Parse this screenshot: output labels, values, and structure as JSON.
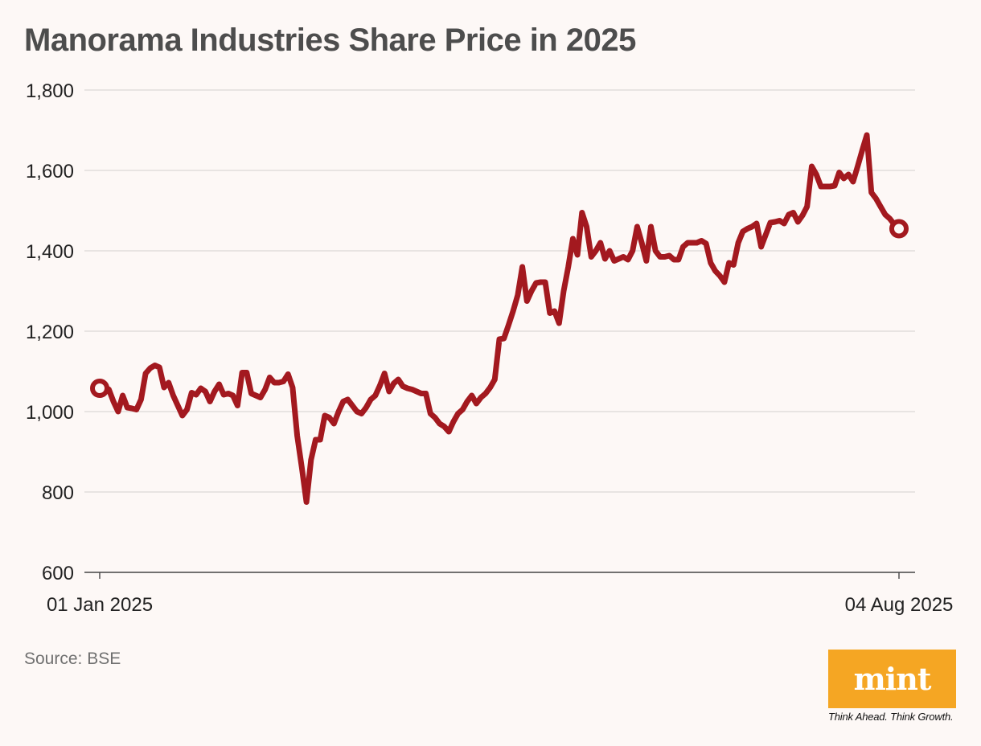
{
  "chart_data": {
    "type": "line",
    "title": "Manorama Industries Share Price in 2025",
    "xlabel": "",
    "ylabel": "",
    "ylim": [
      600,
      1800
    ],
    "yticks": [
      600,
      800,
      1000,
      1200,
      1400,
      1600,
      1800
    ],
    "ytick_labels": [
      "600",
      "800",
      "1,000",
      "1,200",
      "1,400",
      "1,600",
      "1,800"
    ],
    "x_start_label": "01 Jan 2025",
    "x_end_label": "04 Aug 2025",
    "grid": true,
    "series": [
      {
        "name": "Share Price",
        "color": "#a3191f",
        "values": [
          1058,
          1062,
          1055,
          1025,
          1000,
          1040,
          1010,
          1008,
          1005,
          1030,
          1095,
          1108,
          1115,
          1110,
          1060,
          1072,
          1040,
          1015,
          990,
          1005,
          1047,
          1042,
          1058,
          1050,
          1025,
          1050,
          1068,
          1042,
          1045,
          1040,
          1015,
          1097,
          1097,
          1045,
          1040,
          1035,
          1055,
          1085,
          1072,
          1072,
          1075,
          1093,
          1060,
          940,
          860,
          775,
          880,
          930,
          930,
          990,
          985,
          970,
          1000,
          1025,
          1030,
          1015,
          1000,
          995,
          1010,
          1030,
          1040,
          1065,
          1095,
          1050,
          1070,
          1080,
          1063,
          1058,
          1055,
          1050,
          1045,
          1045,
          995,
          985,
          970,
          963,
          950,
          975,
          995,
          1005,
          1025,
          1040,
          1020,
          1035,
          1045,
          1060,
          1080,
          1180,
          1182,
          1215,
          1250,
          1290,
          1360,
          1275,
          1300,
          1320,
          1322,
          1322,
          1245,
          1250,
          1220,
          1300,
          1360,
          1430,
          1390,
          1495,
          1460,
          1385,
          1400,
          1420,
          1380,
          1400,
          1375,
          1380,
          1385,
          1378,
          1400,
          1460,
          1420,
          1375,
          1460,
          1400,
          1385,
          1385,
          1388,
          1378,
          1378,
          1410,
          1420,
          1420,
          1420,
          1425,
          1418,
          1370,
          1350,
          1338,
          1322,
          1370,
          1365,
          1420,
          1448,
          1455,
          1460,
          1468,
          1410,
          1440,
          1470,
          1472,
          1475,
          1468,
          1490,
          1495,
          1472,
          1488,
          1510,
          1610,
          1590,
          1560,
          1560,
          1560,
          1562,
          1595,
          1580,
          1590,
          1572,
          1610,
          1650,
          1688,
          1545,
          1530,
          1510,
          1490,
          1480,
          1465,
          1455
        ]
      }
    ]
  },
  "source_text": "Source: BSE",
  "logo": {
    "word": "mint",
    "tagline": "Think Ahead. Think Growth.",
    "color": "#f5a623"
  }
}
